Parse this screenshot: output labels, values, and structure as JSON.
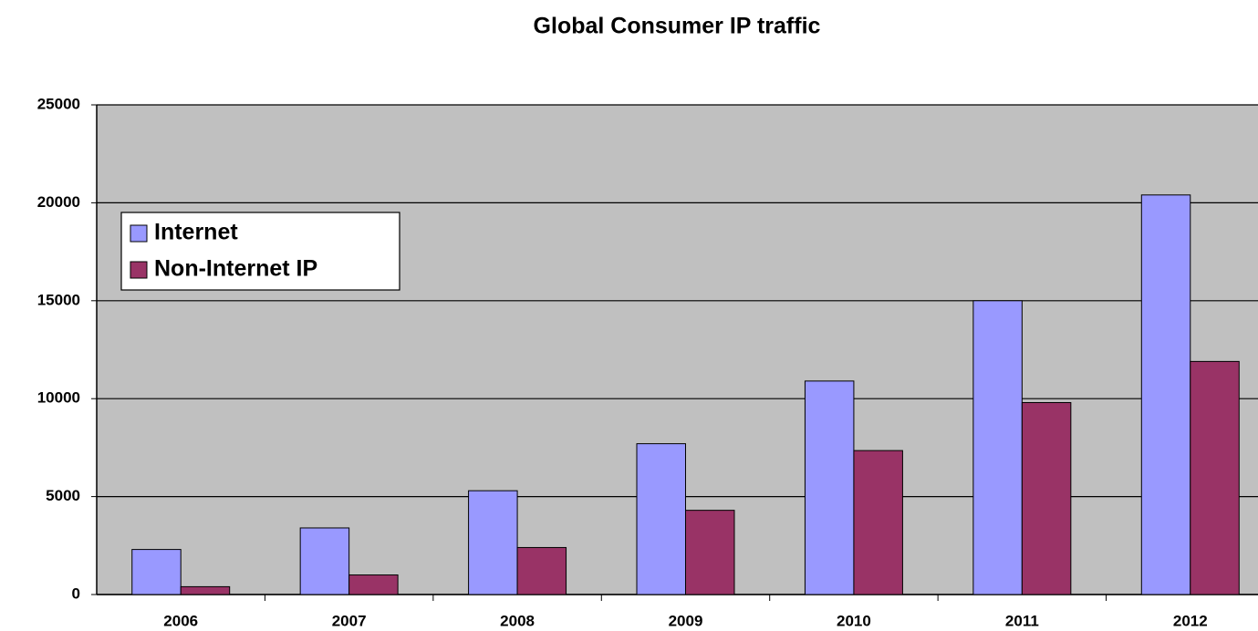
{
  "chart_data": {
    "type": "bar",
    "title": "Global Consumer IP traffic",
    "categories": [
      "2006",
      "2007",
      "2008",
      "2009",
      "2010",
      "2011",
      "2012"
    ],
    "series": [
      {
        "name": "Internet",
        "color": "#9999ff",
        "values": [
          2300,
          3400,
          5300,
          7700,
          10900,
          15000,
          20400
        ]
      },
      {
        "name": "Non-Internet IP",
        "color": "#993366",
        "values": [
          400,
          1000,
          2400,
          4300,
          7350,
          9800,
          11900
        ]
      }
    ],
    "ylim": [
      0,
      25000
    ],
    "yticks": [
      0,
      5000,
      10000,
      15000,
      20000,
      25000
    ],
    "grid": true,
    "legend": "upper left"
  }
}
